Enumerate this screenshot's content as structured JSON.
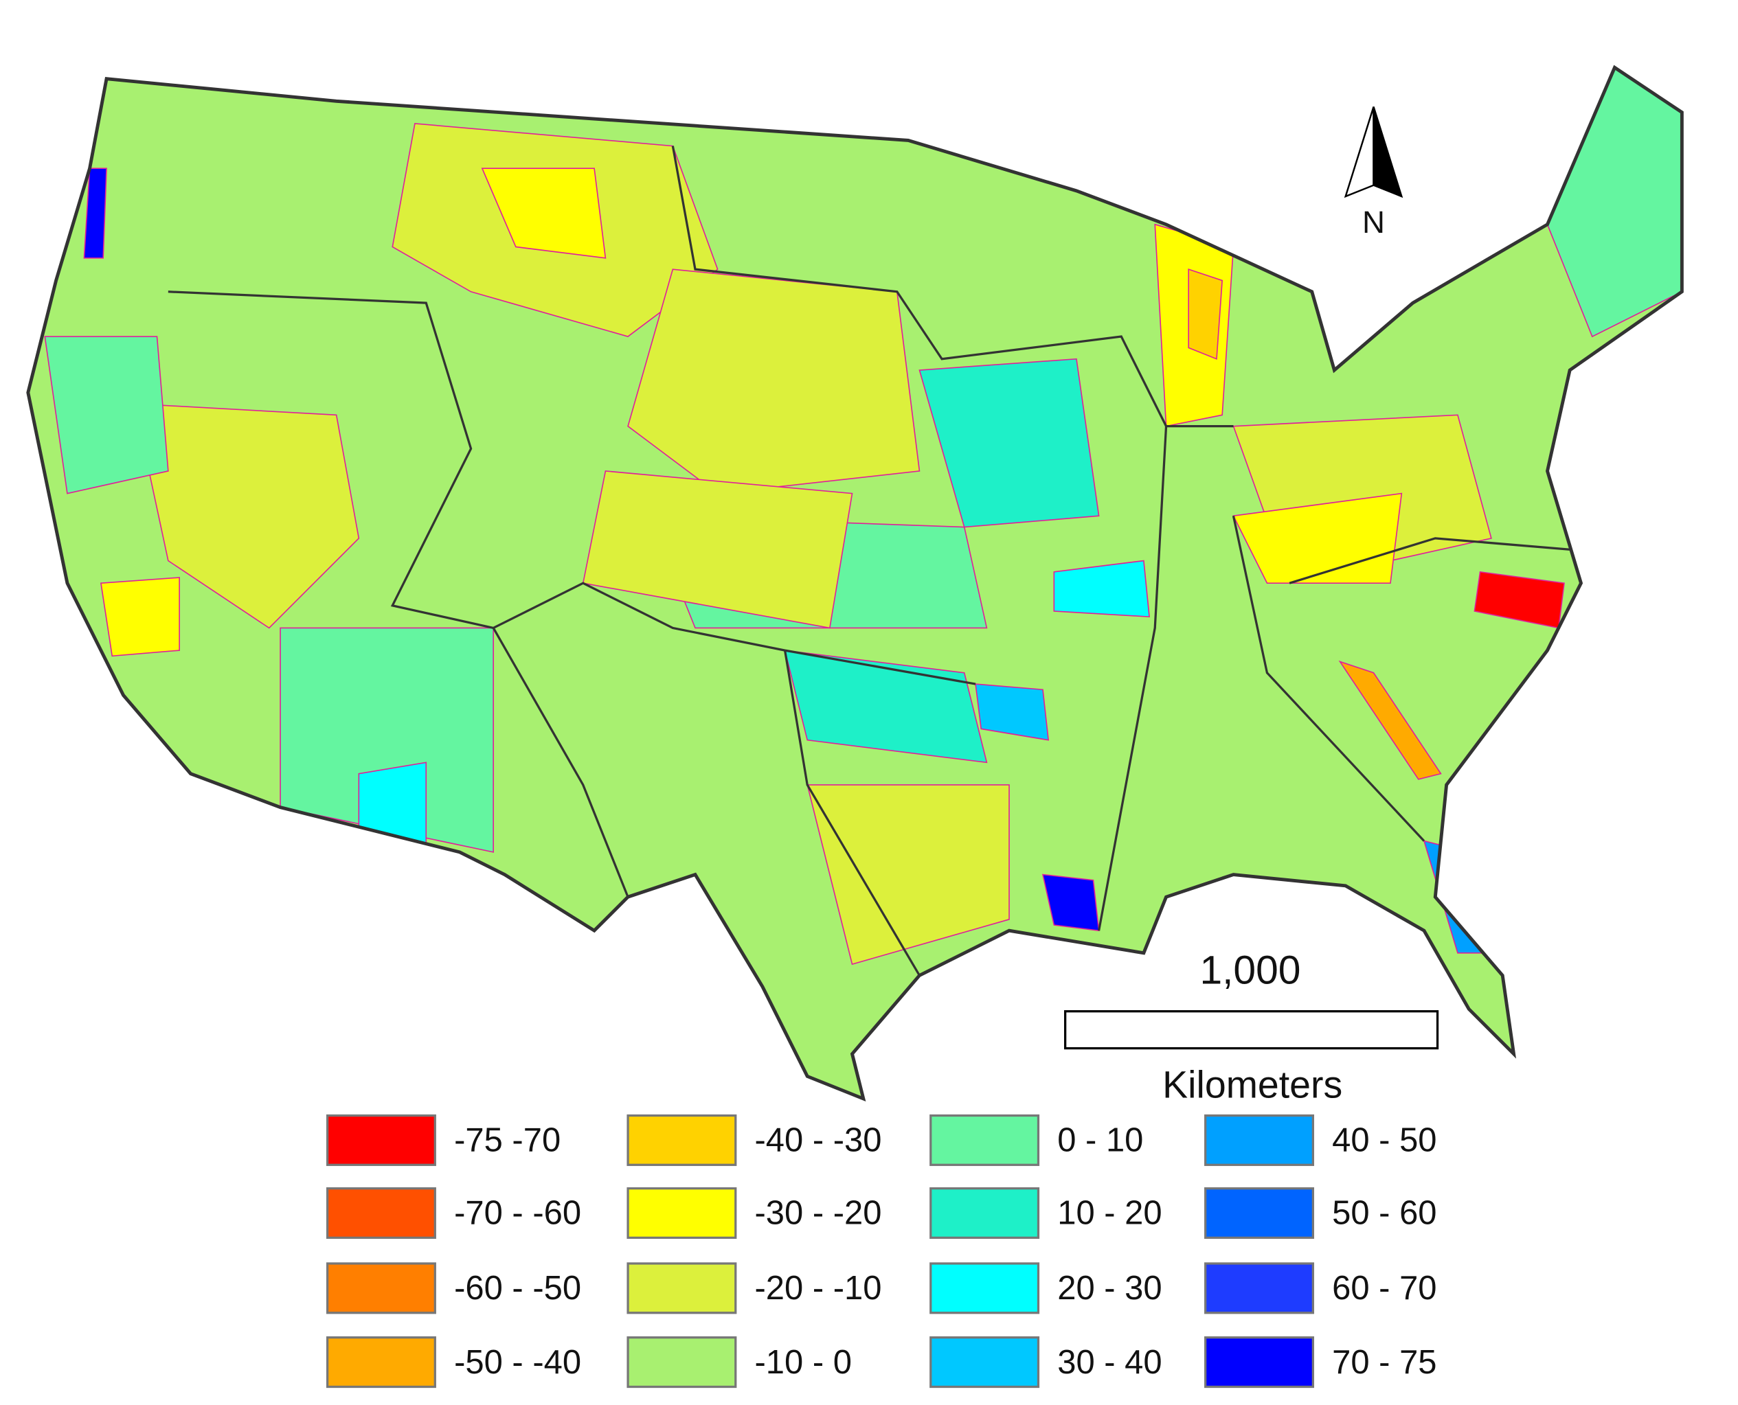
{
  "map": {
    "north_label": "N",
    "scale_bar": {
      "label": "1,000",
      "unit": "Kilometers"
    },
    "legend": [
      {
        "label": "-75  -70",
        "color": "#ff0000"
      },
      {
        "label": "-70 - -60",
        "color": "#ff5000"
      },
      {
        "label": "-60 - -50",
        "color": "#ff7f00"
      },
      {
        "label": "-50 - -40",
        "color": "#ffaa00"
      },
      {
        "label": "-40 - -30",
        "color": "#ffd200"
      },
      {
        "label": "-30 - -20",
        "color": "#ffff00"
      },
      {
        "label": "-20 - -10",
        "color": "#dcf03c"
      },
      {
        "label": "-10 - 0",
        "color": "#a8f070"
      },
      {
        "label": "0 - 10",
        "color": "#64f5a0"
      },
      {
        "label": "10 - 20",
        "color": "#1ef0c8"
      },
      {
        "label": "20 - 30",
        "color": "#00ffff"
      },
      {
        "label": "30 - 40",
        "color": "#00c8ff"
      },
      {
        "label": "40 - 50",
        "color": "#00a0ff"
      },
      {
        "label": "50 - 60",
        "color": "#0064ff"
      },
      {
        "label": "60 - 70",
        "color": "#1e3cff"
      },
      {
        "label": "70 - 75",
        "color": "#0000ff"
      }
    ]
  }
}
